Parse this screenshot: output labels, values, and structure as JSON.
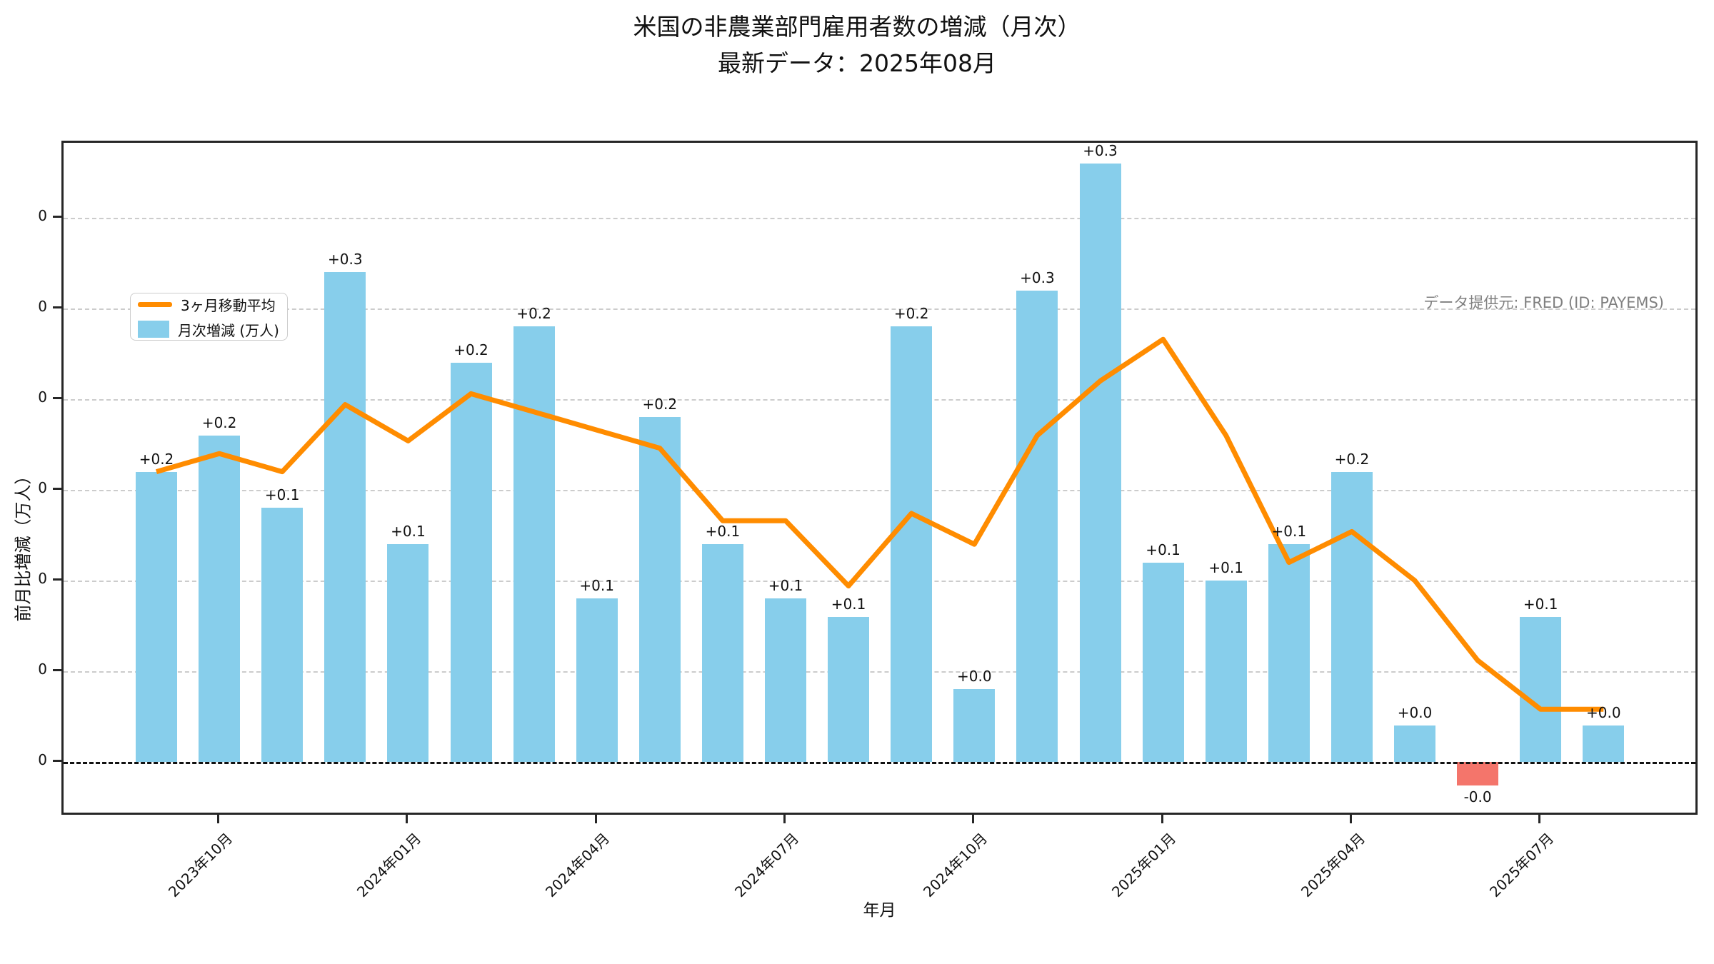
{
  "title": {
    "line1": "米国の非農業部門雇用者数の増減（月次）",
    "line2": "最新データ：2025年08月"
  },
  "source_note": "データ提供元: FRED (ID: PAYEMS)",
  "legend": {
    "ma_label": "3ヶ月移動平均",
    "bar_label": "月次増減 (万人)"
  },
  "axes": {
    "x_label": "年月",
    "y_label": "前月比増減（万人）"
  },
  "colors": {
    "bar_positive": "#87CEEB",
    "bar_negative": "#F4756B",
    "ma_line": "#FF8C00",
    "grid": "#CCCCCC",
    "zero_line": "#111111",
    "source_text": "#808080"
  },
  "chart_data": {
    "type": "bar",
    "title": "米国の非農業部門雇用者数の増減（月次）",
    "subtitle": "最新データ：2025年08月",
    "xlabel": "年月",
    "ylabel": "前月比増減（万人）",
    "categories": [
      "2023-09",
      "2023-10",
      "2023-11",
      "2023-12",
      "2024-01",
      "2024-02",
      "2024-03",
      "2024-04",
      "2024-05",
      "2024-06",
      "2024-07",
      "2024-08",
      "2024-09",
      "2024-10",
      "2024-11",
      "2024-12",
      "2025-01",
      "2025-02",
      "2025-03",
      "2025-04",
      "2025-05",
      "2025-06",
      "2025-07",
      "2025-08"
    ],
    "series": [
      {
        "name": "月次増減 (万人)",
        "type": "bar",
        "values": [
          0.16,
          0.18,
          0.14,
          0.27,
          0.12,
          0.22,
          0.24,
          0.09,
          0.19,
          0.12,
          0.09,
          0.08,
          0.24,
          0.04,
          0.26,
          0.33,
          0.11,
          0.1,
          0.12,
          0.16,
          0.02,
          -0.013,
          0.08,
          0.02
        ],
        "labels": [
          "+0.2",
          "+0.2",
          "+0.1",
          "+0.3",
          "+0.1",
          "+0.2",
          "+0.2",
          "+0.1",
          "+0.2",
          "+0.1",
          "+0.1",
          "+0.1",
          "+0.2",
          "+0.0",
          "+0.3",
          "+0.3",
          "+0.1",
          "+0.1",
          "+0.1",
          "+0.2",
          "+0.0",
          "-0.0",
          "+0.1",
          "+0.0"
        ]
      },
      {
        "name": "3ヶ月移動平均",
        "type": "line",
        "values": [
          0.16,
          0.17,
          0.16,
          0.197,
          0.177,
          0.203,
          0.193,
          0.183,
          0.173,
          0.133,
          0.133,
          0.097,
          0.137,
          0.12,
          0.18,
          0.21,
          0.233,
          0.18,
          0.11,
          0.127,
          0.1,
          0.056,
          0.029,
          0.029
        ]
      }
    ],
    "x_tick_indices": [
      1,
      4,
      7,
      10,
      13,
      16,
      19,
      22
    ],
    "x_tick_labels": [
      "2023年10月",
      "2024年01月",
      "2024年04月",
      "2024年07月",
      "2024年10月",
      "2025年01月",
      "2025年04月",
      "2025年07月"
    ],
    "x_tick_rotation_deg": 45,
    "y_tick_values": [
      0.3,
      0.25,
      0.2,
      0.15,
      0.1,
      0.05,
      0.0
    ],
    "y_tick_labels": [
      "0",
      "0",
      "0",
      "0",
      "0",
      "0",
      "0"
    ],
    "ylim": [
      -0.0303,
      0.3413
    ],
    "grid": "horizontal-dashed",
    "zero_line": "black-dashed",
    "legend_position": "upper-left"
  }
}
